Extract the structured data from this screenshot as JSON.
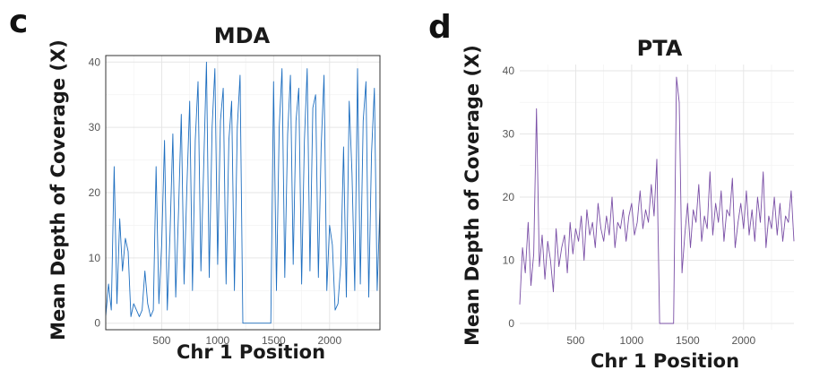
{
  "chart_data": [
    {
      "panel": "c",
      "type": "line",
      "title": "MDA",
      "xlabel": "Chr 1 Position",
      "ylabel": "Mean Depth of Coverage (X)",
      "xlim": [
        0,
        2450
      ],
      "ylim": [
        -1,
        41
      ],
      "xticks": [
        500,
        1000,
        1500,
        2000
      ],
      "yticks": [
        0,
        10,
        20,
        30,
        40
      ],
      "grid": true,
      "series": [
        {
          "color": "#1f6fc0",
          "x": [
            0,
            25,
            50,
            75,
            100,
            125,
            150,
            175,
            200,
            225,
            250,
            275,
            300,
            325,
            350,
            375,
            400,
            425,
            450,
            475,
            500,
            525,
            550,
            575,
            600,
            625,
            650,
            675,
            700,
            725,
            750,
            775,
            800,
            825,
            850,
            875,
            900,
            925,
            950,
            975,
            1000,
            1025,
            1050,
            1075,
            1100,
            1125,
            1150,
            1175,
            1200,
            1225,
            1250,
            1275,
            1300,
            1325,
            1350,
            1375,
            1400,
            1425,
            1450,
            1475,
            1500,
            1525,
            1550,
            1575,
            1600,
            1625,
            1650,
            1675,
            1700,
            1725,
            1750,
            1775,
            1800,
            1825,
            1850,
            1875,
            1900,
            1925,
            1950,
            1975,
            2000,
            2025,
            2050,
            2075,
            2100,
            2125,
            2150,
            2175,
            2200,
            2225,
            2250,
            2275,
            2300,
            2325,
            2350,
            2375,
            2400,
            2425,
            2450
          ],
          "values": [
            1,
            6,
            2,
            24,
            3,
            16,
            8,
            13,
            11,
            1,
            3,
            2,
            1,
            2,
            8,
            3,
            1,
            2,
            24,
            3,
            12,
            28,
            2,
            14,
            29,
            4,
            17,
            32,
            6,
            21,
            34,
            5,
            28,
            37,
            8,
            24,
            40,
            7,
            30,
            39,
            9,
            31,
            36,
            6,
            28,
            34,
            5,
            30,
            38,
            0,
            0,
            0,
            0,
            0,
            0,
            0,
            0,
            0,
            0,
            0,
            37,
            5,
            30,
            39,
            7,
            29,
            38,
            9,
            31,
            36,
            6,
            28,
            39,
            8,
            33,
            35,
            7,
            27,
            38,
            5,
            15,
            12,
            2,
            3,
            9,
            27,
            4,
            34,
            23,
            5,
            39,
            6,
            31,
            37,
            4,
            26,
            36,
            5,
            18
          ]
        }
      ]
    },
    {
      "panel": "d",
      "type": "line",
      "title": "PTA",
      "xlabel": "Chr 1 Position",
      "ylabel": "Mean Depth of Coverage (X)",
      "xlim": [
        0,
        2450
      ],
      "ylim": [
        -1,
        41
      ],
      "xticks": [
        500,
        1000,
        1500,
        2000
      ],
      "yticks": [
        0,
        10,
        20,
        30,
        40
      ],
      "grid": true,
      "series": [
        {
          "color": "#7a4fa6",
          "x": [
            0,
            25,
            50,
            75,
            100,
            125,
            150,
            175,
            200,
            225,
            250,
            275,
            300,
            325,
            350,
            375,
            400,
            425,
            450,
            475,
            500,
            525,
            550,
            575,
            600,
            625,
            650,
            675,
            700,
            725,
            750,
            775,
            800,
            825,
            850,
            875,
            900,
            925,
            950,
            975,
            1000,
            1025,
            1050,
            1075,
            1100,
            1125,
            1150,
            1175,
            1200,
            1225,
            1250,
            1275,
            1300,
            1325,
            1350,
            1375,
            1400,
            1425,
            1450,
            1475,
            1500,
            1525,
            1550,
            1575,
            1600,
            1625,
            1650,
            1675,
            1700,
            1725,
            1750,
            1775,
            1800,
            1825,
            1850,
            1875,
            1900,
            1925,
            1950,
            1975,
            2000,
            2025,
            2050,
            2075,
            2100,
            2125,
            2150,
            2175,
            2200,
            2225,
            2250,
            2275,
            2300,
            2325,
            2350,
            2375,
            2400,
            2425,
            2450
          ],
          "values": [
            3,
            12,
            8,
            16,
            6,
            11,
            34,
            9,
            14,
            7,
            13,
            10,
            5,
            15,
            9,
            12,
            14,
            8,
            16,
            11,
            15,
            13,
            17,
            10,
            18,
            14,
            16,
            12,
            19,
            15,
            13,
            17,
            14,
            20,
            12,
            16,
            15,
            18,
            13,
            17,
            19,
            14,
            16,
            21,
            15,
            18,
            16,
            22,
            17,
            26,
            0,
            0,
            0,
            0,
            0,
            0,
            39,
            35,
            8,
            14,
            19,
            12,
            18,
            16,
            22,
            13,
            17,
            15,
            24,
            14,
            19,
            16,
            21,
            13,
            18,
            17,
            23,
            12,
            16,
            19,
            15,
            21,
            14,
            18,
            13,
            20,
            16,
            24,
            12,
            17,
            15,
            20,
            14,
            19,
            13,
            17,
            16,
            21,
            13
          ]
        }
      ]
    }
  ]
}
